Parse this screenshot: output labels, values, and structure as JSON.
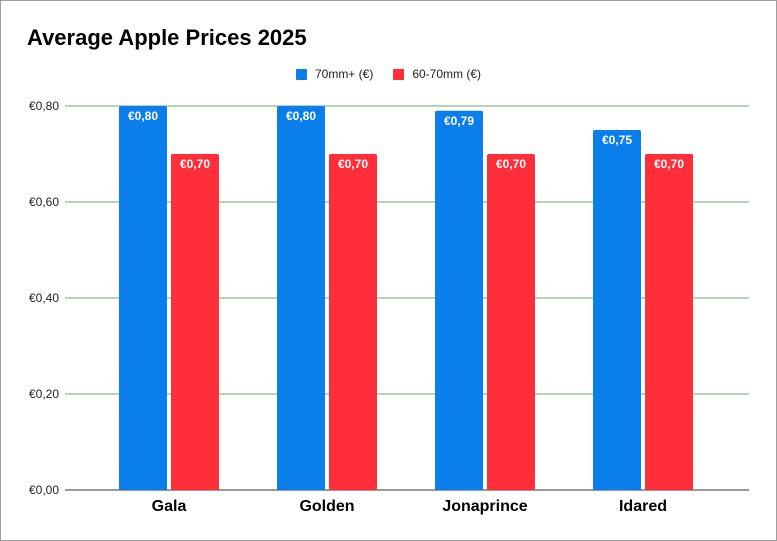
{
  "chart_data": {
    "type": "bar",
    "title": "Average Apple Prices 2025",
    "categories": [
      "Gala",
      "Golden",
      "Jonaprince",
      "Idared"
    ],
    "series": [
      {
        "name": "70mm+ (€)",
        "color": "#0a7eea",
        "values": [
          0.8,
          0.8,
          0.79,
          0.75
        ],
        "labels": [
          "€0,80",
          "€0,80",
          "€0,79",
          "€0,75"
        ]
      },
      {
        "name": "60-70mm (€)",
        "color": "#ff2e38",
        "values": [
          0.7,
          0.7,
          0.7,
          0.7
        ],
        "labels": [
          "€0,70",
          "€0,70",
          "€0,70",
          "€0,70"
        ]
      }
    ],
    "yticks": [
      0,
      0.2,
      0.4,
      0.6,
      0.8
    ],
    "ytick_labels": [
      "€0,00",
      "€0,20",
      "€0,40",
      "€0,60",
      "€0,80"
    ],
    "ylim": [
      0,
      0.8
    ],
    "grid": true,
    "grid_color": "#3a8a3a",
    "legend_position": "top-center"
  }
}
